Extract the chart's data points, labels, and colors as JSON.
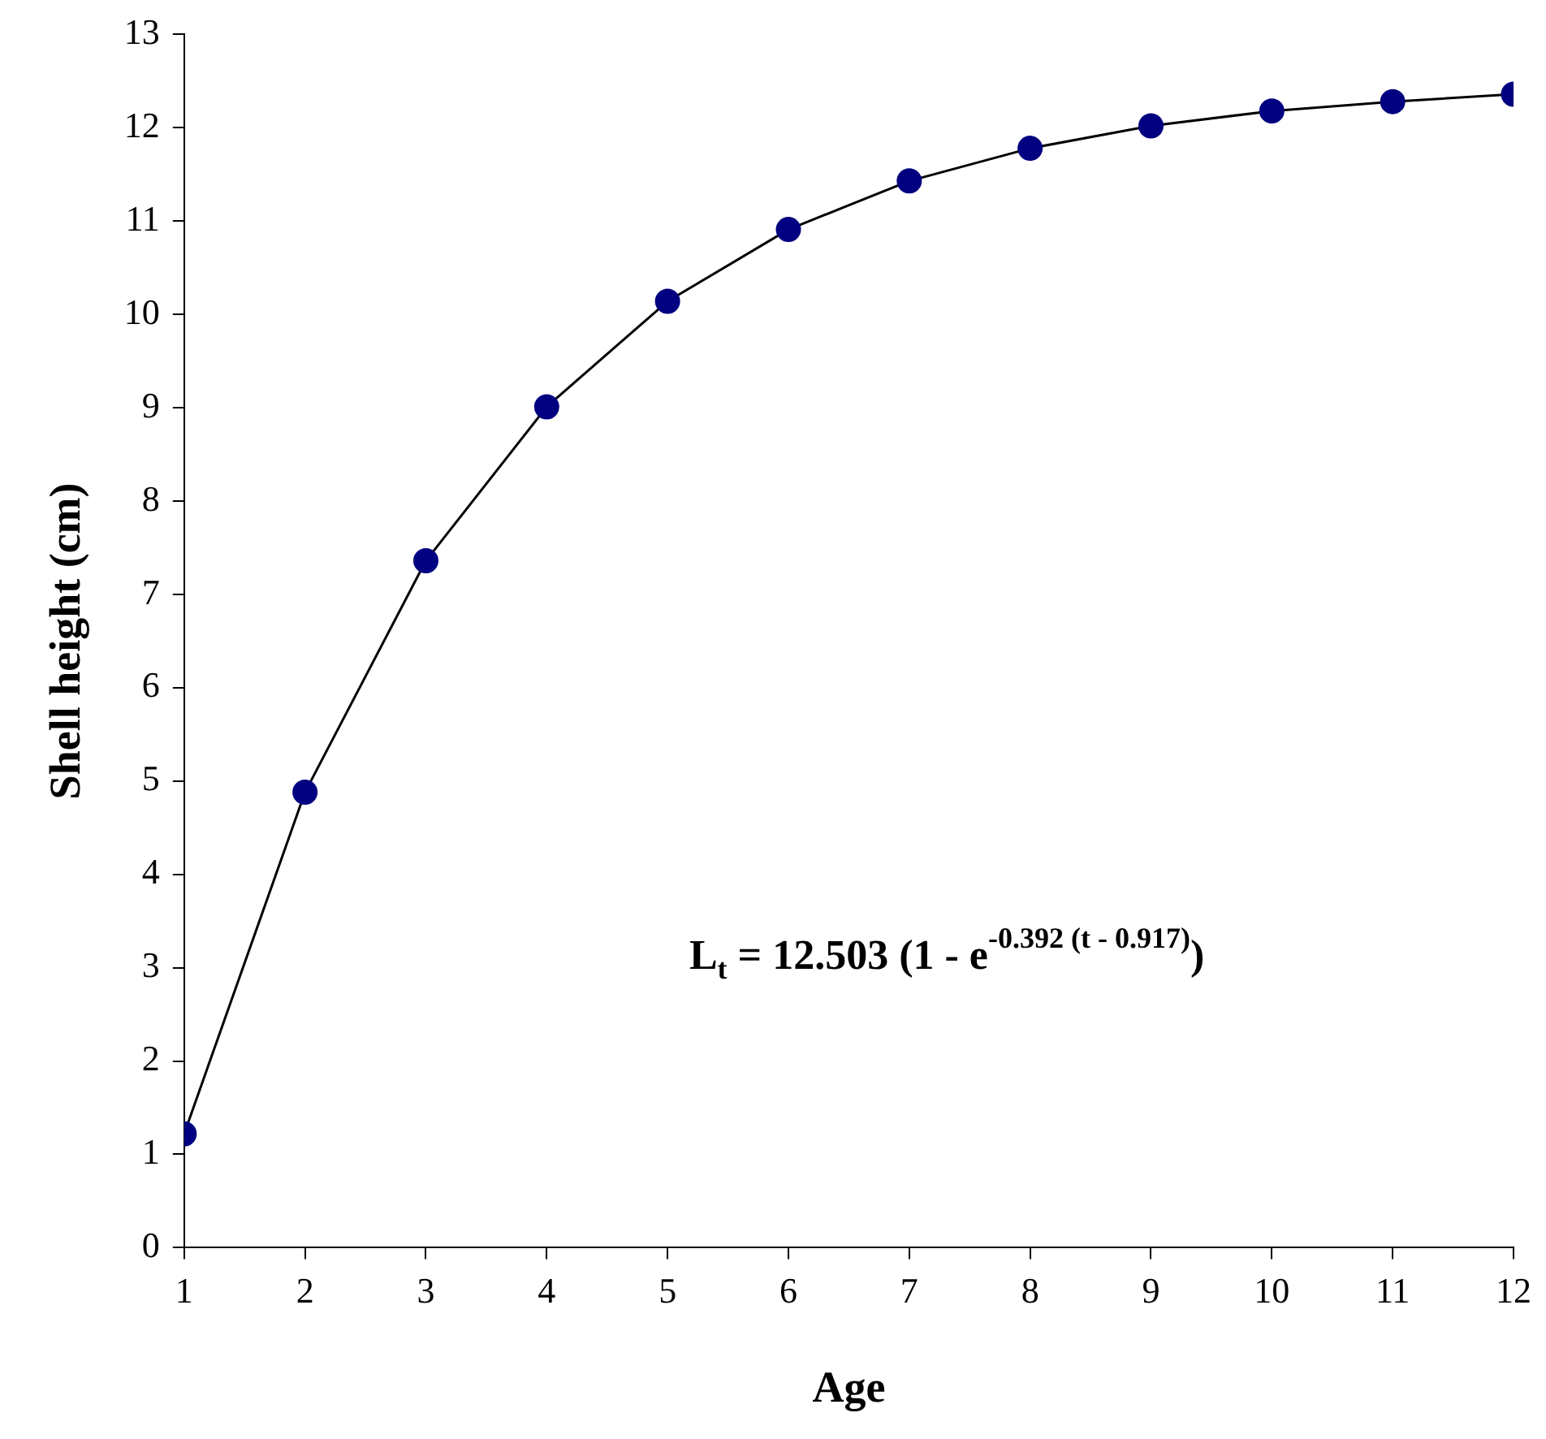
{
  "chart_data": {
    "type": "line",
    "xlabel": "Age",
    "ylabel": "Shell height (cm)",
    "x": [
      1,
      2,
      3,
      4,
      5,
      6,
      7,
      8,
      9,
      10,
      11,
      12
    ],
    "series": [
      {
        "color": "#000080",
        "values": [
          1.22,
          4.88,
          7.36,
          9.01,
          10.14,
          10.91,
          11.43,
          11.78,
          12.02,
          12.18,
          12.28,
          12.36
        ]
      }
    ],
    "xlim": [
      1,
      12
    ],
    "xticks": [
      1,
      2,
      3,
      4,
      5,
      6,
      7,
      8,
      9,
      10,
      11,
      12
    ],
    "ylim": [
      0,
      13
    ],
    "yticks": [
      0,
      1,
      2,
      3,
      4,
      5,
      6,
      7,
      8,
      9,
      10,
      11,
      12,
      13
    ],
    "grid": false,
    "legend": false,
    "marker": "circle",
    "line_style": "solid",
    "annotations": [
      "L$_{t}$ = 12.503 (1 - e$^{-0.392 (t - 0.917)}$)"
    ]
  }
}
